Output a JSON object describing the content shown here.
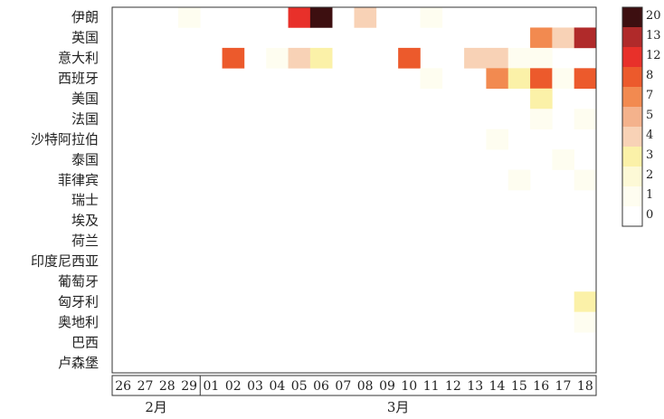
{
  "chart_data": {
    "type": "heatmap",
    "title": "",
    "xlabel": "",
    "ylabel": "",
    "rows": [
      "伊朗",
      "英国",
      "意大利",
      "西班牙",
      "美国",
      "法国",
      "沙特阿拉伯",
      "泰国",
      "菲律宾",
      "瑞士",
      "埃及",
      "荷兰",
      "印度尼西亚",
      "葡萄牙",
      "匈牙利",
      "奥地利",
      "巴西",
      "卢森堡"
    ],
    "columns": [
      "26",
      "27",
      "28",
      "29",
      "01",
      "02",
      "03",
      "04",
      "05",
      "06",
      "07",
      "08",
      "09",
      "10",
      "11",
      "12",
      "13",
      "14",
      "15",
      "16",
      "17",
      "18"
    ],
    "month_groups": [
      {
        "label": "2月",
        "columns": [
          "26",
          "27",
          "28",
          "29"
        ]
      },
      {
        "label": "3月",
        "columns": [
          "01",
          "02",
          "03",
          "04",
          "05",
          "06",
          "07",
          "08",
          "09",
          "10",
          "11",
          "12",
          "13",
          "14",
          "15",
          "16",
          "17",
          "18"
        ]
      }
    ],
    "colorbar_ticks": [
      "20",
      "13",
      "12",
      "8",
      "7",
      "5",
      "4",
      "3",
      "2",
      "1",
      "0"
    ],
    "colorbar_colors": [
      "#3d0f10",
      "#b02a2a",
      "#e8302a",
      "#ec5a2c",
      "#f28a50",
      "#f4b28c",
      "#f8d2b6",
      "#fbf1a8",
      "#fdf9d6",
      "#fefdf0",
      "#ffffff"
    ],
    "values": [
      [
        0,
        0,
        0,
        1,
        0,
        0,
        0,
        0,
        12,
        20,
        0,
        4,
        0,
        0,
        1,
        0,
        0,
        0,
        0,
        0,
        0,
        0
      ],
      [
        0,
        0,
        0,
        0,
        0,
        0,
        0,
        0,
        0,
        0,
        0,
        0,
        0,
        0,
        0,
        0,
        0,
        0,
        0,
        7,
        4,
        13
      ],
      [
        0,
        0,
        0,
        0,
        0,
        8,
        0,
        1,
        4,
        3,
        0,
        0,
        0,
        8,
        0,
        0,
        4,
        4,
        1,
        1,
        0,
        0
      ],
      [
        0,
        0,
        0,
        0,
        0,
        0,
        0,
        0,
        0,
        0,
        0,
        0,
        0,
        0,
        1,
        0,
        0,
        7,
        3,
        8,
        1,
        8
      ],
      [
        0,
        0,
        0,
        0,
        0,
        0,
        0,
        0,
        0,
        0,
        0,
        0,
        0,
        0,
        0,
        0,
        0,
        0,
        0,
        3,
        0,
        0
      ],
      [
        0,
        0,
        0,
        0,
        0,
        0,
        0,
        0,
        0,
        0,
        0,
        0,
        0,
        0,
        0,
        0,
        0,
        0,
        0,
        1,
        0,
        1
      ],
      [
        0,
        0,
        0,
        0,
        0,
        0,
        0,
        0,
        0,
        0,
        0,
        0,
        0,
        0,
        0,
        0,
        0,
        1,
        0,
        0,
        0,
        0
      ],
      [
        0,
        0,
        0,
        0,
        0,
        0,
        0,
        0,
        0,
        0,
        0,
        0,
        0,
        0,
        0,
        0,
        0,
        0,
        0,
        0,
        1,
        0
      ],
      [
        0,
        0,
        0,
        0,
        0,
        0,
        0,
        0,
        0,
        0,
        0,
        0,
        0,
        0,
        0,
        0,
        0,
        0,
        1,
        0,
        0,
        1
      ],
      [
        0,
        0,
        0,
        0,
        0,
        0,
        0,
        0,
        0,
        0,
        0,
        0,
        0,
        0,
        0,
        0,
        0,
        0,
        0,
        0,
        0,
        0
      ],
      [
        0,
        0,
        0,
        0,
        0,
        0,
        0,
        0,
        0,
        0,
        0,
        0,
        0,
        0,
        0,
        0,
        0,
        0,
        0,
        0,
        0,
        0
      ],
      [
        0,
        0,
        0,
        0,
        0,
        0,
        0,
        0,
        0,
        0,
        0,
        0,
        0,
        0,
        0,
        0,
        0,
        0,
        0,
        0,
        0,
        0
      ],
      [
        0,
        0,
        0,
        0,
        0,
        0,
        0,
        0,
        0,
        0,
        0,
        0,
        0,
        0,
        0,
        0,
        0,
        0,
        0,
        0,
        0,
        0
      ],
      [
        0,
        0,
        0,
        0,
        0,
        0,
        0,
        0,
        0,
        0,
        0,
        0,
        0,
        0,
        0,
        0,
        0,
        0,
        0,
        0,
        0,
        0
      ],
      [
        0,
        0,
        0,
        0,
        0,
        0,
        0,
        0,
        0,
        0,
        0,
        0,
        0,
        0,
        0,
        0,
        0,
        0,
        0,
        0,
        0,
        3
      ],
      [
        0,
        0,
        0,
        0,
        0,
        0,
        0,
        0,
        0,
        0,
        0,
        0,
        0,
        0,
        0,
        0,
        0,
        0,
        0,
        0,
        0,
        1
      ],
      [
        0,
        0,
        0,
        0,
        0,
        0,
        0,
        0,
        0,
        0,
        0,
        0,
        0,
        0,
        0,
        0,
        0,
        0,
        0,
        0,
        0,
        0
      ],
      [
        0,
        0,
        0,
        0,
        0,
        0,
        0,
        0,
        0,
        0,
        0,
        0,
        0,
        0,
        0,
        0,
        0,
        0,
        0,
        0,
        0,
        0
      ]
    ]
  }
}
